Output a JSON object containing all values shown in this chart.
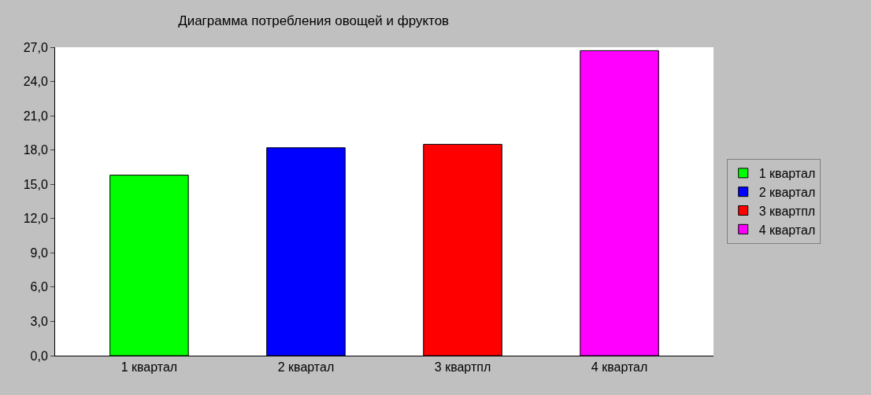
{
  "chart_data": {
    "type": "bar",
    "title": "Диаграмма потребления овощей и фруктов",
    "categories": [
      "1 квартал",
      "2 квартал",
      "3 квартпл",
      "4 квартал"
    ],
    "series": [
      {
        "name": "1 квартал",
        "color": "#00ff00",
        "values": [
          15.8,
          null,
          null,
          null
        ]
      },
      {
        "name": "2 квартал",
        "color": "#0000ff",
        "values": [
          null,
          18.2,
          null,
          null
        ]
      },
      {
        "name": "3 квартпл",
        "color": "#ff0000",
        "values": [
          null,
          null,
          18.5,
          null
        ]
      },
      {
        "name": "4 квартал",
        "color": "#ff00ff",
        "values": [
          null,
          null,
          null,
          26.7
        ]
      }
    ],
    "ylim": [
      0,
      27
    ],
    "yticks": [
      {
        "value": 0,
        "label": "0,0"
      },
      {
        "value": 3,
        "label": "3,0"
      },
      {
        "value": 6,
        "label": "6,0"
      },
      {
        "value": 9,
        "label": "9,0"
      },
      {
        "value": 12,
        "label": "12,0"
      },
      {
        "value": 15,
        "label": "15,0"
      },
      {
        "value": 18,
        "label": "18,0"
      },
      {
        "value": 21,
        "label": "21,0"
      },
      {
        "value": 24,
        "label": "24,0"
      },
      {
        "value": 27,
        "label": "27,0"
      }
    ],
    "legend": "right"
  }
}
